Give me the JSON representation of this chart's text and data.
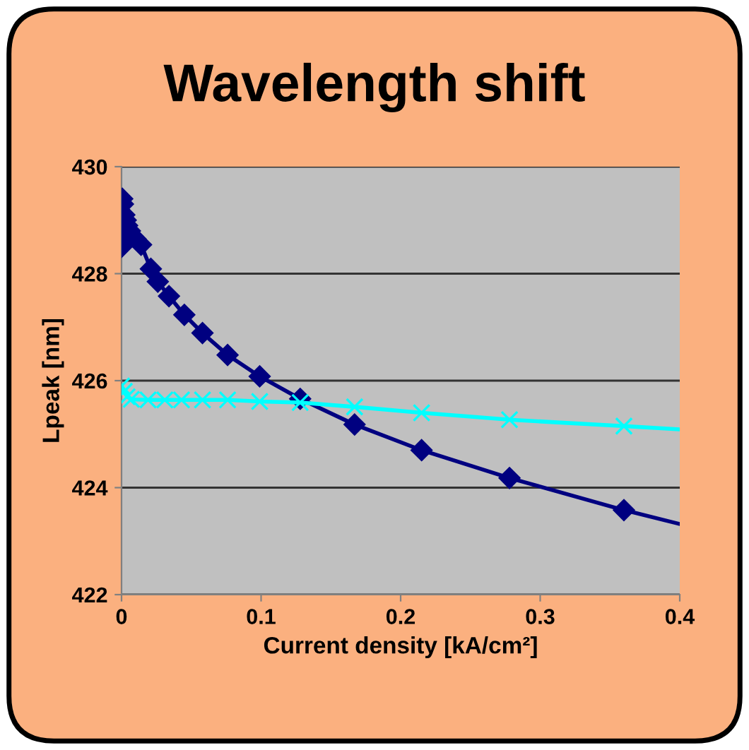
{
  "chart_data": {
    "type": "line",
    "title": "Wavelength shift",
    "xlabel": "Current density [kA/cm²]",
    "ylabel": "Lpeak [nm]",
    "xlim": [
      0,
      0.4
    ],
    "xticks": [
      0,
      0.1,
      0.2,
      0.3,
      0.4
    ],
    "ylim": [
      422,
      430
    ],
    "yticks": [
      422,
      424,
      426,
      428,
      430
    ],
    "grid": "y",
    "legend": false,
    "series": [
      {
        "color": "#000080",
        "marker": "diamond",
        "x": [
          0.0,
          0.0005,
          0.001,
          0.002,
          0.003,
          0.004,
          0.006,
          0.008,
          0.01,
          0.014,
          0.021,
          0.026,
          0.034,
          0.045,
          0.058,
          0.076,
          0.099,
          0.128,
          0.167,
          0.215,
          0.278,
          0.36
        ],
        "values": [
          428.5,
          429.4,
          429.3,
          429.1,
          429.0,
          428.9,
          428.8,
          428.7,
          428.65,
          428.54,
          428.09,
          427.85,
          427.58,
          427.23,
          426.89,
          426.48,
          426.08,
          425.66,
          425.18,
          424.7,
          424.18,
          423.58
        ]
      },
      {
        "color": "#000080",
        "marker": "none",
        "x": [
          0.36,
          0.4
        ],
        "values": [
          423.58,
          423.32
        ]
      },
      {
        "color": "#00ffff",
        "marker": "cross",
        "x": [
          0.0,
          0.002,
          0.004,
          0.007,
          0.019,
          0.031,
          0.043,
          0.058,
          0.076,
          0.099,
          0.128,
          0.167,
          0.215,
          0.278,
          0.36
        ],
        "values": [
          425.9,
          425.8,
          425.7,
          425.65,
          425.64,
          425.64,
          425.64,
          425.64,
          425.64,
          425.61,
          425.59,
          425.51,
          425.4,
          425.27,
          425.15
        ]
      },
      {
        "color": "#00ffff",
        "marker": "none",
        "x": [
          0.36,
          0.4
        ],
        "values": [
          425.15,
          425.09
        ]
      }
    ]
  }
}
